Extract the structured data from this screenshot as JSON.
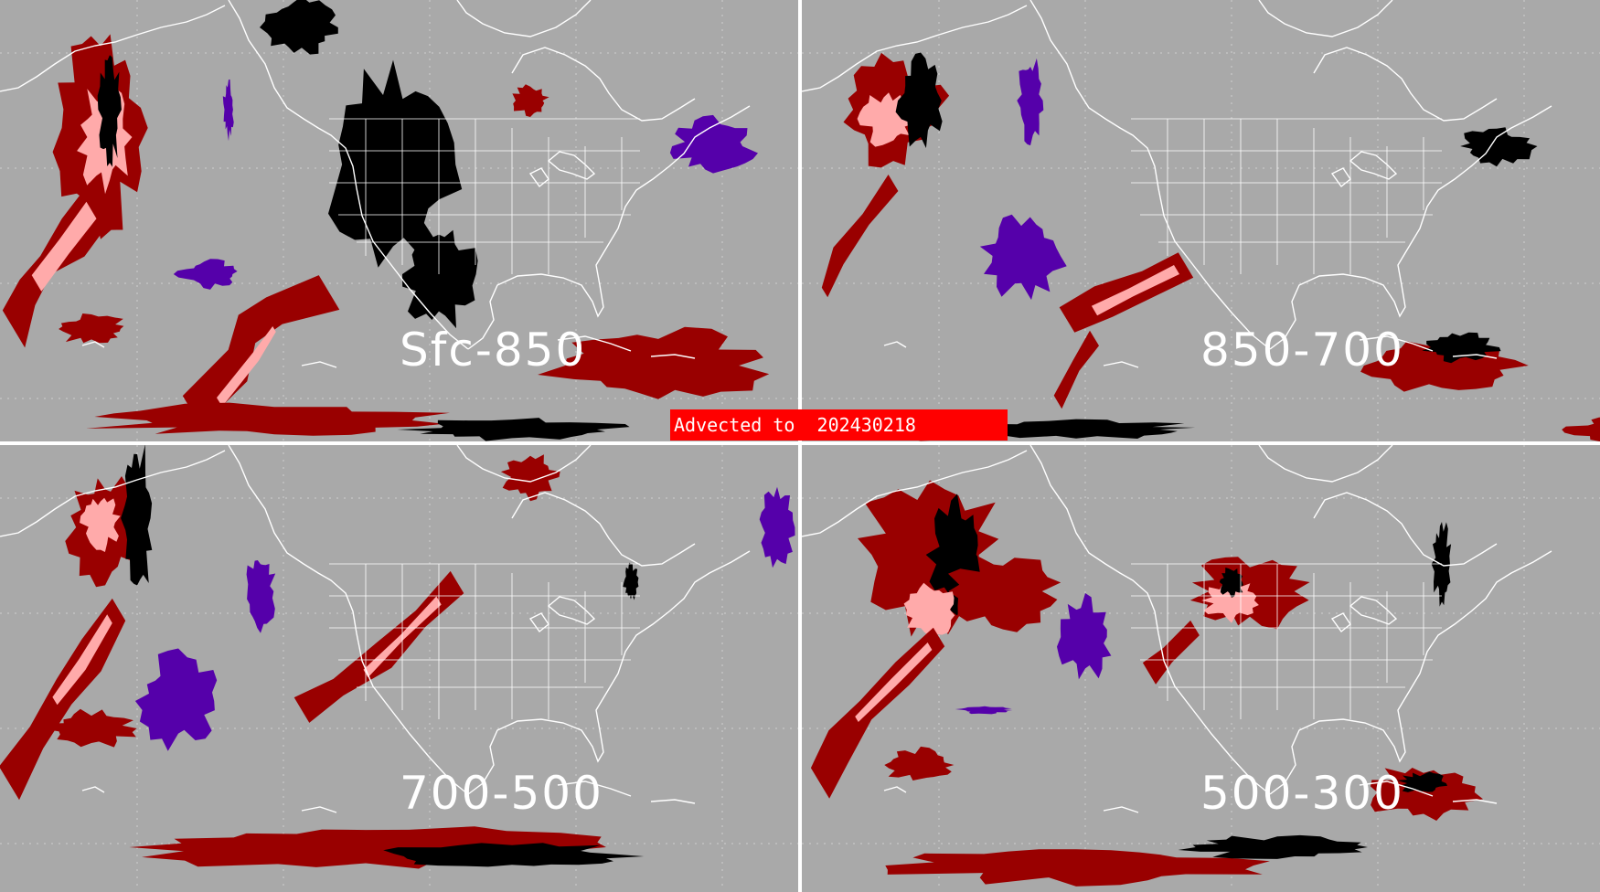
{
  "banner": {
    "text": "Advected to  202430218",
    "color": "#ff0000"
  },
  "panels": [
    {
      "label": "Sfc-850"
    },
    {
      "label": "850-700"
    },
    {
      "label": "700-500"
    },
    {
      "label": "500-300"
    }
  ],
  "legend_colors": {
    "background": "#a9a9a9",
    "outline": "#ffffff",
    "dark_red": "#990000",
    "pink": "#ffaaaa",
    "black": "#000000",
    "purple": "#5500aa",
    "banner": "#ff0000"
  }
}
